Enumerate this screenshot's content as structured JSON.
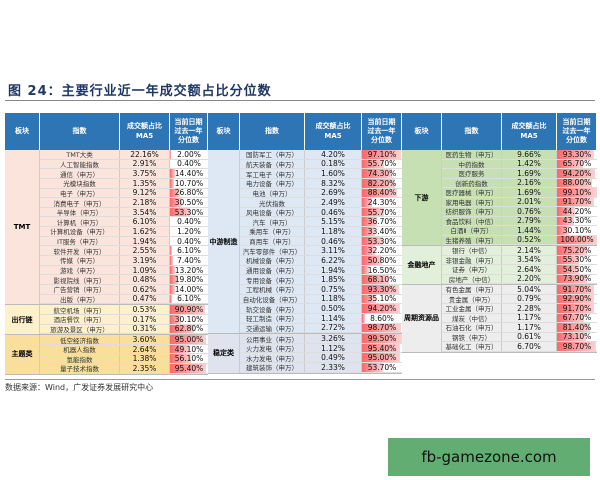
{
  "title": "图 24：主要行业近一年成交额占比分位数",
  "headers": {
    "sector": "板块",
    "index": "指数",
    "ma5": "成交额占比\nMA5",
    "pct": "当前日期\n过去一年\n分位数"
  },
  "colors": {
    "header": "#2e75b6",
    "bar": "#f8696b"
  },
  "tables": [
    {
      "sections": [
        {
          "name": "TMT",
          "bg": "#fbe4dc",
          "rows": [
            [
              "TMT大类",
              "22.16%",
              "2.00%"
            ],
            [
              "人工智能指数",
              "2.91%",
              "0.40%"
            ],
            [
              "通信（申万）",
              "3.75%",
              "14.40%"
            ],
            [
              "光模块指数",
              "1.35%",
              "10.70%"
            ],
            [
              "电子（申万）",
              "9.12%",
              "26.80%"
            ],
            [
              "消费电子（申万）",
              "2.18%",
              "30.50%"
            ],
            [
              "半导体（申万）",
              "3.54%",
              "53.30%"
            ],
            [
              "计算机（申万）",
              "6.10%",
              "0.40%"
            ],
            [
              "计算机设备（申万）",
              "1.62%",
              "1.20%"
            ],
            [
              "IT服务（申万）",
              "1.94%",
              "0.40%"
            ],
            [
              "软件开发（申万）",
              "2.55%",
              "6.10%"
            ],
            [
              "传媒（申万）",
              "3.19%",
              "7.40%"
            ],
            [
              "游戏（申万）",
              "1.09%",
              "13.20%"
            ],
            [
              "影视院线（申万）",
              "0.48%",
              "19.80%"
            ],
            [
              "广告营销（申万）",
              "0.62%",
              "14.00%"
            ],
            [
              "出版（申万）",
              "0.47%",
              "6.10%"
            ]
          ]
        },
        {
          "name": "出行链",
          "bg": "#fdf1cc",
          "rows": [
            [
              "航空机场（申万）",
              "0.53%",
              "90.90%"
            ],
            [
              "酒店餐饮（申万）",
              "0.17%",
              "30.10%"
            ],
            [
              "旅游及景区（申万）",
              "0.31%",
              "62.80%"
            ]
          ]
        },
        {
          "name": "主题类",
          "bg": "#f9df9b",
          "rows": [
            [
              "低空经济指数",
              "3.60%",
              "95.00%"
            ],
            [
              "机器人指数",
              "2.64%",
              "49.10%"
            ],
            [
              "氢能指数",
              "1.38%",
              "56.10%"
            ],
            [
              "量子技术指数",
              "2.35%",
              "95.40%"
            ]
          ]
        }
      ]
    },
    {
      "sections": [
        {
          "name": "中游制造",
          "bg": "#dde8f4",
          "rows": [
            [
              "国防军工（申万）",
              "4.20%",
              "97.10%"
            ],
            [
              "航天装备（申万）",
              "0.18%",
              "55.70%"
            ],
            [
              "军工电子（申万）",
              "1.60%",
              "74.30%"
            ],
            [
              "电力设备（申万）",
              "8.32%",
              "82.20%"
            ],
            [
              "电池（申万）",
              "2.69%",
              "88.40%"
            ],
            [
              "光伏指数",
              "2.49%",
              "24.30%"
            ],
            [
              "风电设备（申万）",
              "0.46%",
              "55.70%"
            ],
            [
              "汽车（申万）",
              "5.15%",
              "36.70%"
            ],
            [
              "乘用车（申万）",
              "1.18%",
              "33.40%"
            ],
            [
              "商用车（申万）",
              "0.46%",
              "53.30%"
            ],
            [
              "汽车零部件（申万）",
              "3.11%",
              "32.20%"
            ],
            [
              "机械设备（申万）",
              "6.22%",
              "50.80%"
            ],
            [
              "通用设备（申万）",
              "1.94%",
              "16.50%"
            ],
            [
              "专用设备（申万）",
              "1.85%",
              "68.10%"
            ],
            [
              "工程机械（申万）",
              "0.75%",
              "93.30%"
            ],
            [
              "自动化设备（申万）",
              "1.18%",
              "35.10%"
            ],
            [
              "轨交设备（申万）",
              "0.50%",
              "94.20%"
            ],
            [
              "轻工制造（申万）",
              "1.14%",
              "8.60%"
            ],
            [
              "交通运输（申万）",
              "2.72%",
              "98.70%"
            ]
          ]
        },
        {
          "name": "稳定类",
          "bg": "#dfe3ee",
          "rows": [
            [
              "公用事业（申万）",
              "3.26%",
              "99.50%"
            ],
            [
              "火力发电（申万）",
              "1.12%",
              "95.40%"
            ],
            [
              "水力发电（申万）",
              "0.49%",
              "95.00%"
            ],
            [
              "建筑装饰（申万）",
              "2.33%",
              "53.70%"
            ]
          ]
        }
      ]
    },
    {
      "sections": [
        {
          "name": "下游",
          "bg": "#c6e0b4",
          "rows": [
            [
              "医药生物（申万）",
              "9.66%",
              "93.30%"
            ],
            [
              "中药指数",
              "1.42%",
              "65.70%"
            ],
            [
              "医疗服务",
              "1.69%",
              "94.20%"
            ],
            [
              "创新药指数",
              "2.16%",
              "88.00%"
            ],
            [
              "医疗器械（申万）",
              "1.69%",
              "99.10%"
            ],
            [
              "家用电器（申万）",
              "2.01%",
              "91.70%"
            ],
            [
              "纺织服饰（申万）",
              "0.76%",
              "44.20%"
            ],
            [
              "食品饮料（中信）",
              "2.79%",
              "43.30%"
            ],
            [
              "白酒Ⅱ（申万）",
              "1.44%",
              "30.10%"
            ],
            [
              "生猪养殖（申万）",
              "0.52%",
              "100.00%"
            ]
          ]
        },
        {
          "name": "金融地产",
          "bg": "#e2efda",
          "rows": [
            [
              "银行（中信）",
              "2.14%",
              "75.20%"
            ],
            [
              "非银金融（申万）",
              "3.54%",
              "55.30%"
            ],
            [
              "证券（申万）",
              "2.64%",
              "54.50%"
            ],
            [
              "房地产（中信）",
              "2.20%",
              "73.90%"
            ]
          ]
        },
        {
          "name": "周期资源品",
          "bg": "#ededed",
          "rows": [
            [
              "有色金属（申万）",
              "5.04%",
              "91.70%"
            ],
            [
              "贵金属（申万）",
              "0.79%",
              "92.90%"
            ],
            [
              "工业金属（申万）",
              "2.28%",
              "91.70%"
            ],
            [
              "煤炭（中信）",
              "1.17%",
              "67.70%"
            ],
            [
              "石油石化（申万）",
              "1.17%",
              "81.40%"
            ],
            [
              "钢铁（申万）",
              "0.61%",
              "73.10%"
            ],
            [
              "基础化工（申万）",
              "6.70%",
              "98.70%"
            ]
          ]
        }
      ]
    }
  ],
  "source": "数据来源：Wind，广发证券发展研究中心",
  "watermark": "fb-gamezone.com"
}
